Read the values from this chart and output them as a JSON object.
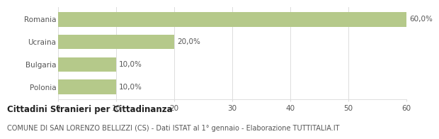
{
  "categories": [
    "Romania",
    "Ucraina",
    "Bulgaria",
    "Polonia"
  ],
  "values": [
    60.0,
    20.0,
    10.0,
    10.0
  ],
  "bar_color": "#b5c98a",
  "xlim": [
    0,
    60
  ],
  "xticks": [
    0,
    10,
    20,
    30,
    40,
    50,
    60
  ],
  "value_labels": [
    "60,0%",
    "20,0%",
    "10,0%",
    "10,0%"
  ],
  "title_bold": "Cittadini Stranieri per Cittadinanza",
  "subtitle": "COMUNE DI SAN LORENZO BELLIZZI (CS) - Dati ISTAT al 1° gennaio - Elaborazione TUTTITALIA.IT",
  "background_color": "#ffffff",
  "grid_color": "#dddddd",
  "label_fontsize": 7.5,
  "value_fontsize": 7.5,
  "title_fontsize": 8.5,
  "subtitle_fontsize": 7,
  "bar_height": 0.65
}
